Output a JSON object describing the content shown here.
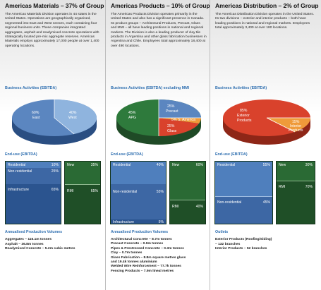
{
  "colors": {
    "blue": "#5b86c0",
    "blue_light": "#8fb4de",
    "green_dark": "#1e4a26",
    "green_box": "#2e6b38",
    "red": "#d9422c",
    "orange": "#ef9a3a",
    "heading_blue": "#2f6fb0"
  },
  "columns": [
    {
      "title": "Americas Materials – 37% of Group",
      "description": "The Americas Materials Division operates in 44 states in the United States. Operations are geographically organised, segmented into East and West sectors, each containing four regional business units. These companies integrated aggregates, asphalt and readymixed concrete operations with strategically located pre-mix aggregate reserves. Americas Materials employs approximately 17,000 people at over 1,400 operating locations.",
      "ebitda_heading": "Business Activities (EBITDA)",
      "pie_labels": [
        "60%",
        "East",
        "40%",
        "West"
      ],
      "end_use_heading": "End-use (EBITDA)",
      "end_use_left": [
        {
          "label": "Residential",
          "value": "10%"
        },
        {
          "label": "Non-residential",
          "value": "25%"
        },
        {
          "label": "Infrastructure",
          "value": "65%"
        }
      ],
      "end_use_right": [
        {
          "label": "New",
          "value": "35%"
        },
        {
          "label": "RMI",
          "value": "65%"
        }
      ],
      "volumes_heading": "Annualised Production Volumes",
      "volumes": [
        "Aggregates – 116.1m tonnes",
        "Asphalt – 36.8m tonnes",
        "Readymixed Concrete – 5.2m cubic metres"
      ]
    },
    {
      "title": "Americas Products – 10% of Group",
      "description": "The Americas Products Division operates primarily in the United States and also has a significant presence in Canada. Its product groups – Architectural Products, Precast, Glass and MMI – all have leading positions in national and regional markets. The Division is also a leading producer of clay tile products in Argentina and other glass fabrication businesses in Argentina and Chile. Employees total approximately 18,400 at over 490 locations.",
      "ebitda_heading": "Business Activities (EBITDA) excluding MMI",
      "pie_labels": [
        "45%",
        "APG",
        "25%",
        "Precast",
        "5% S. America",
        "25%",
        "Glass"
      ],
      "end_use_heading": "End-use (EBITDA)",
      "end_use_left": [
        {
          "label": "Residential",
          "value": "40%"
        },
        {
          "label": "Non-residential",
          "value": "55%"
        },
        {
          "label": "Infrastructure",
          "value": "5%"
        }
      ],
      "end_use_right": [
        {
          "label": "New",
          "value": "60%"
        },
        {
          "label": "RMI",
          "value": "40%"
        }
      ],
      "volumes_heading": "Annualised Production Volumes",
      "volumes": [
        "Architectural Concrete – 8.7m tonnes",
        "Precast Concrete – 0.9m tonnes",
        "Pipes & Prestressed Concrete – 0.3m tonnes",
        "Clay – 0.7m tonnes",
        "Glass Fabrication – 8.8m square metres glass",
        "and 19.4k tonnes aluminium",
        "Welded Wire Reinforcement – 77.7k tonnes",
        "Fencing Products – 7.9m lineal metres"
      ]
    },
    {
      "title": "Americas Distribution – 2% of Group",
      "description": "The Americas Distribution Division operates in the United States. Its two divisions – exterior and interior products – both have leading positions in national and regional markets. Employees total approximately 3,400 at over 180 locations.",
      "ebitda_heading": "Business Activities (EBITDA)",
      "pie_labels": [
        "85%",
        "Exterior",
        "Products",
        "15%",
        "Interior",
        "Products"
      ],
      "end_use_heading": "End-use (EBITDA)",
      "end_use_left": [
        {
          "label": "Residential",
          "value": "55%"
        },
        {
          "label": "Non-residential",
          "value": "45%"
        }
      ],
      "end_use_right": [
        {
          "label": "New",
          "value": "30%"
        },
        {
          "label": "RMI",
          "value": "70%"
        }
      ],
      "volumes_heading": "Outlets",
      "volumes": [
        "Exterior Products (Roofing/Siding)",
        "– 132 branches",
        "Interior Products – 52 branches"
      ]
    }
  ]
}
